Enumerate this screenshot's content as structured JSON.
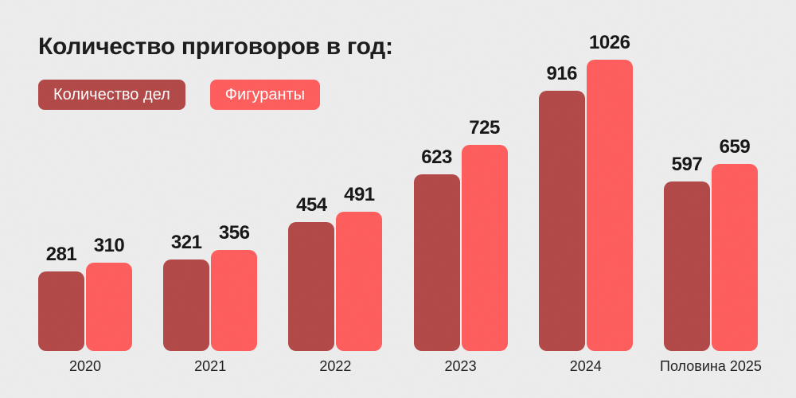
{
  "title": "Количество приговоров в год:",
  "legend": [
    {
      "label": "Количество дел",
      "color": "#b24646"
    },
    {
      "label": "Фигуранты",
      "color": "#ff5b5b"
    }
  ],
  "chart_data": {
    "type": "bar",
    "title": "Количество приговоров в год:",
    "categories": [
      "2020",
      "2021",
      "2022",
      "2023",
      "2024",
      "Половина 2025"
    ],
    "series": [
      {
        "name": "Количество дел",
        "color": "#b24646",
        "values": [
          281,
          321,
          454,
          623,
          916,
          597
        ]
      },
      {
        "name": "Фигуранты",
        "color": "#ff5b5b",
        "values": [
          310,
          356,
          491,
          725,
          1026,
          659
        ]
      }
    ],
    "value_labels": true,
    "xlabel": "",
    "ylabel": "",
    "ylim": [
      0,
      1026
    ],
    "grid": false,
    "legend_position": "top-left"
  },
  "colors": {
    "background": "#ededed",
    "title_text": "#191919",
    "value_text": "#131313",
    "category_text": "#1c1c1c",
    "legend_text": "#ffffff"
  }
}
